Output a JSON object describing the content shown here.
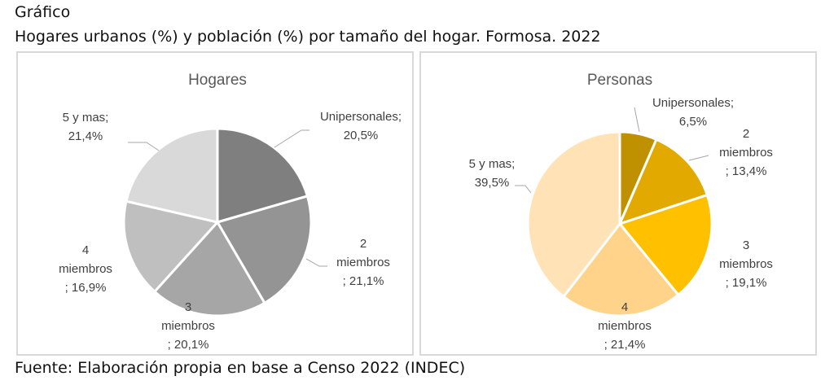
{
  "header": {
    "label": "Gráfico",
    "title": "Hogares urbanos (%) y población (%) por tamaño del hogar. Formosa. 2022"
  },
  "source": "Fuente: Elaboración propia en base a Censo 2022 (INDEC)",
  "chart_data": [
    {
      "type": "pie",
      "title": "Hogares",
      "categories": [
        "Unipersonales",
        "2 miembros",
        "3 miembros",
        "4 miembros",
        "5 y mas"
      ],
      "values": [
        20.5,
        21.1,
        20.1,
        16.9,
        21.4
      ],
      "labels": [
        [
          "Unipersonales;",
          "20,5%"
        ],
        [
          "2",
          "miembros",
          "; 21,1%"
        ],
        [
          "3",
          "miembros",
          "; 20,1%"
        ],
        [
          "4",
          "miembros",
          "; 16,9%"
        ],
        [
          "5 y mas;",
          "21,4%"
        ]
      ],
      "colors": [
        "#7f7f7f",
        "#949494",
        "#a6a6a6",
        "#bfbfbf",
        "#d9d9d9"
      ]
    },
    {
      "type": "pie",
      "title": "Personas",
      "categories": [
        "Unipersonales",
        "2 miembros",
        "3 miembros",
        "4 miembros",
        "5 y mas"
      ],
      "values": [
        6.5,
        13.4,
        19.1,
        21.4,
        39.5
      ],
      "labels": [
        [
          "Unipersonales;",
          "6,5%"
        ],
        [
          "2",
          "miembros",
          "; 13,4%"
        ],
        [
          "3",
          "miembros",
          "; 19,1%"
        ],
        [
          "4",
          "miembros",
          "; 21,4%"
        ],
        [
          "5 y mas;",
          "39,5%"
        ]
      ],
      "colors": [
        "#bf9000",
        "#e2aa00",
        "#ffc000",
        "#ffd38a",
        "#ffe2b5"
      ]
    }
  ]
}
